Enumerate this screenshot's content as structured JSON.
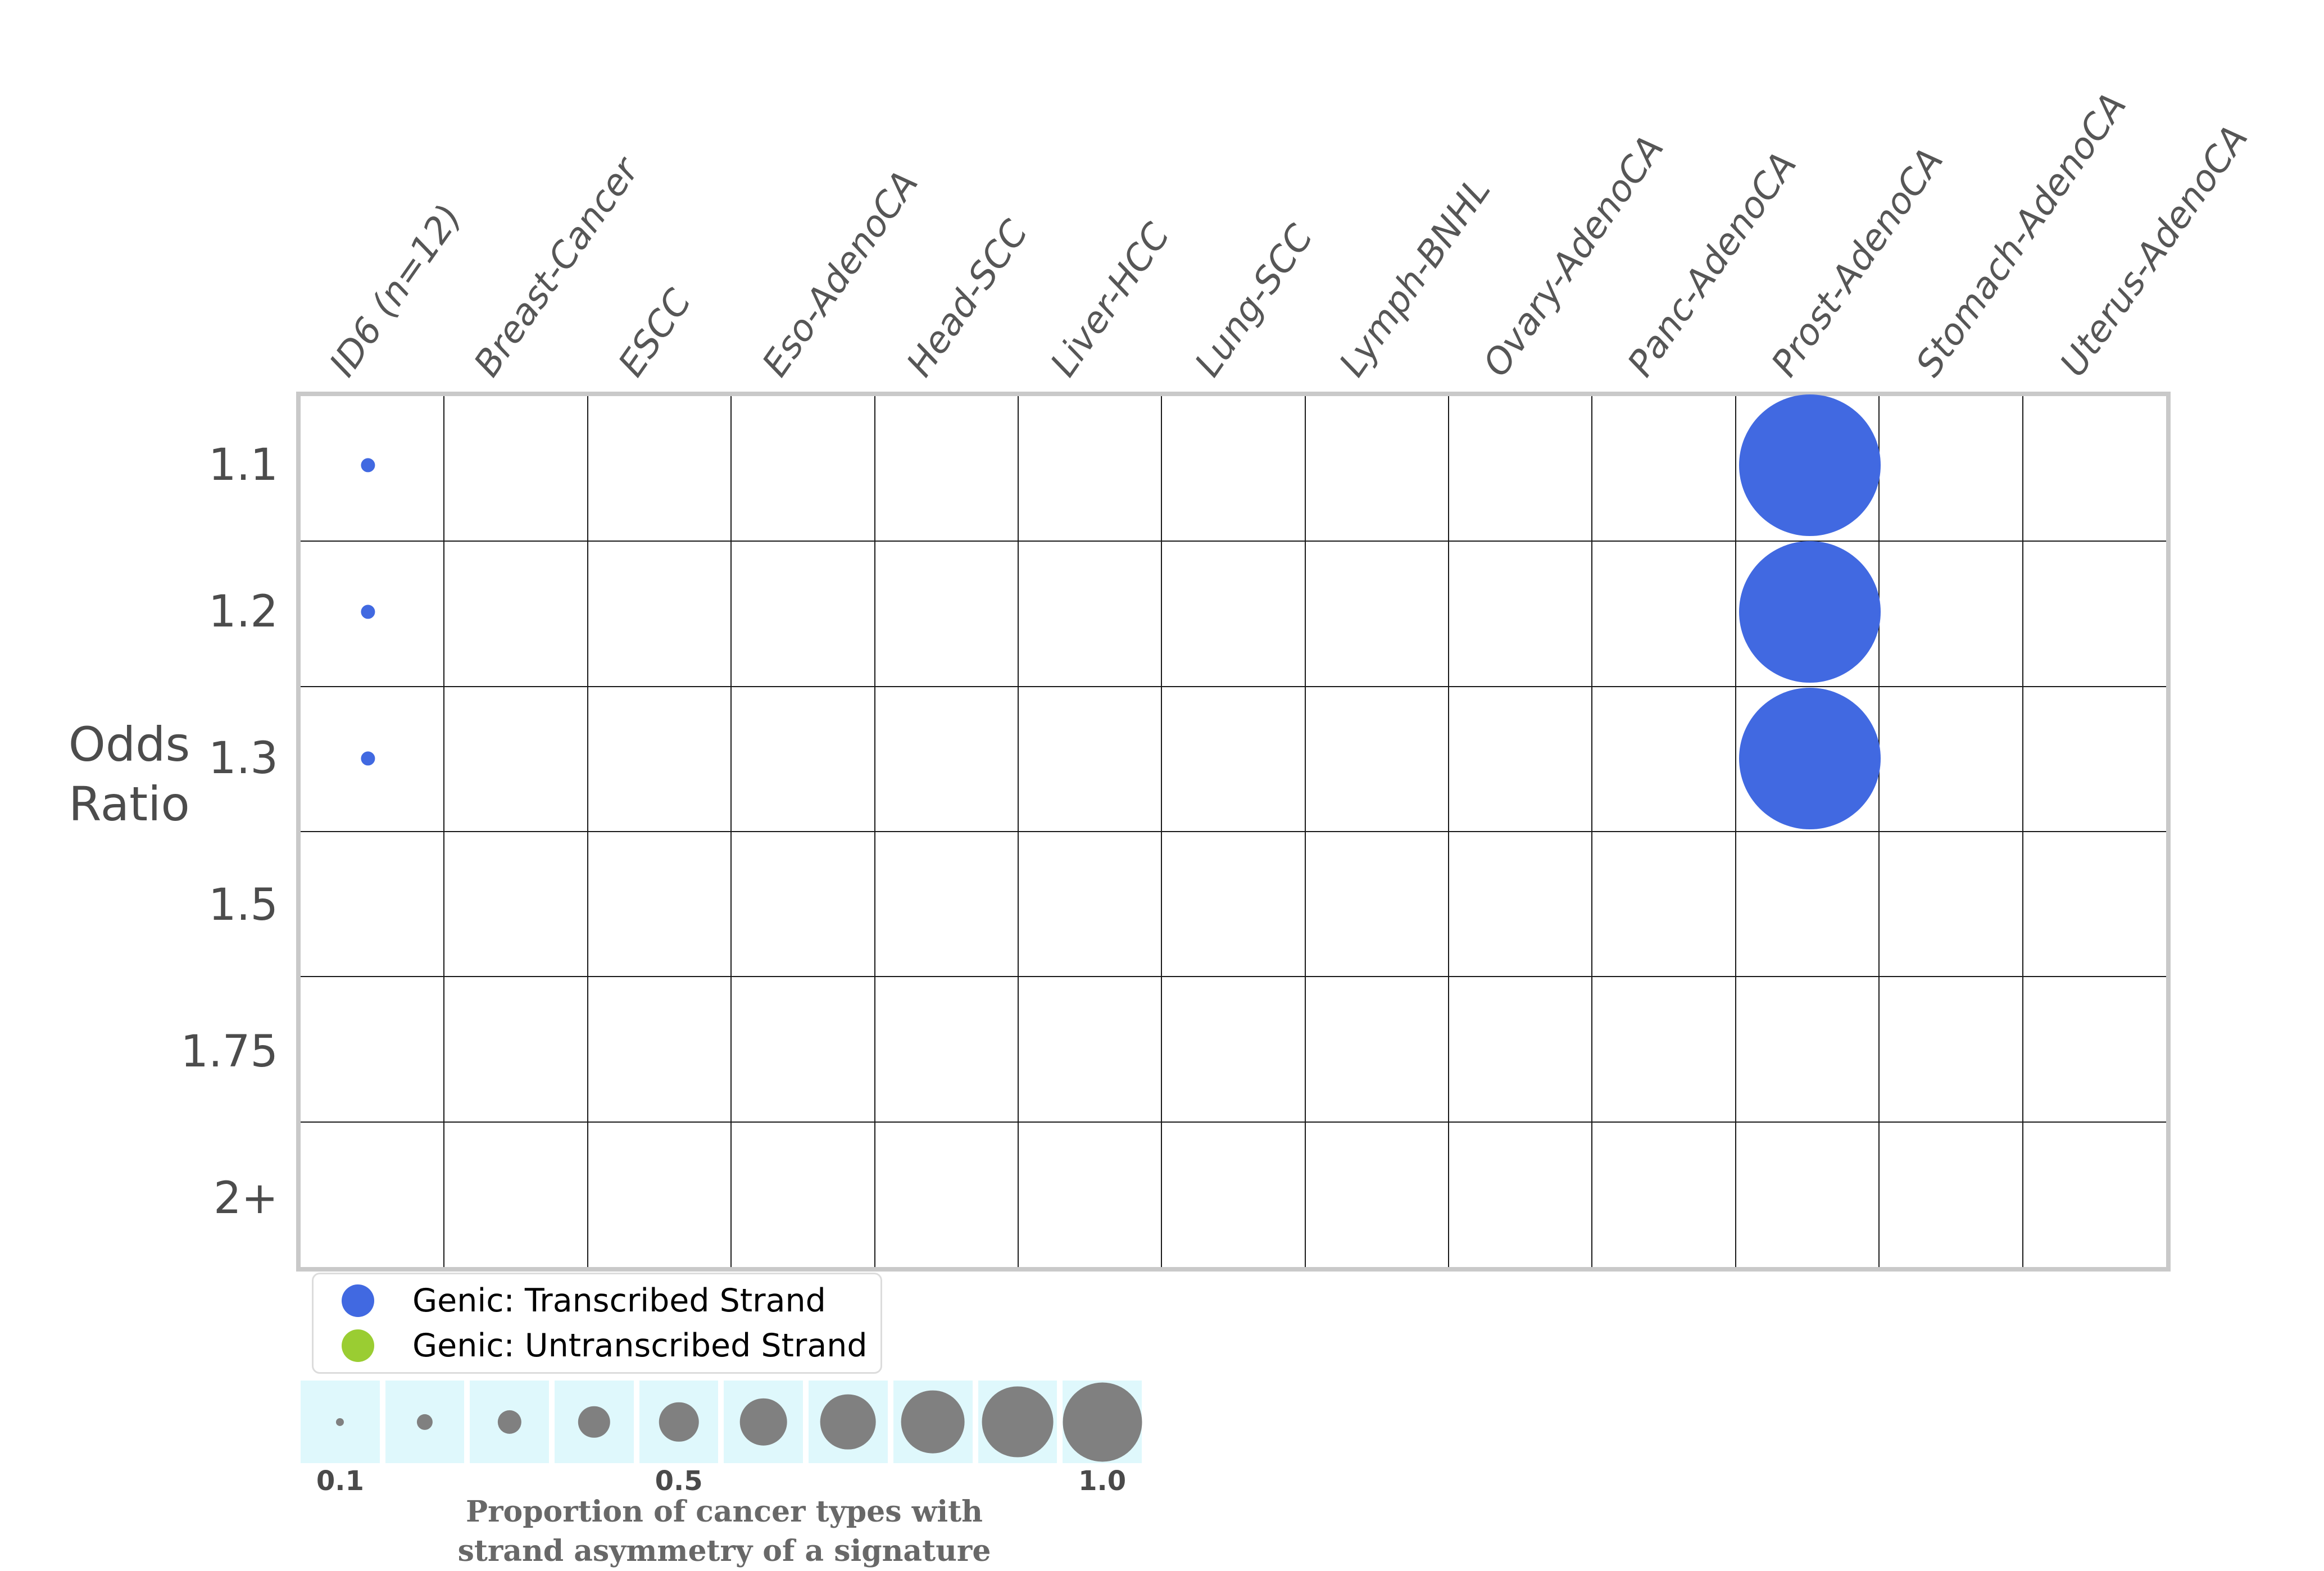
{
  "chart_data": {
    "type": "bubble",
    "x_categories": [
      "ID6 (n=12)",
      "Breast-Cancer",
      "ESCC",
      "Eso-AdenoCA",
      "Head-SCC",
      "Liver-HCC",
      "Lung-SCC",
      "Lymph-BNHL",
      "Ovary-AdenoCA",
      "Panc-AdenoCA",
      "Prost-AdenoCA",
      "Stomach-AdenoCA",
      "Uterus-AdenoCA"
    ],
    "y_categories": [
      "1.1",
      "1.2",
      "1.3",
      "1.5",
      "1.75",
      "2+"
    ],
    "y_axis_label_line1": "Odds",
    "y_axis_label_line2": "Ratio",
    "grid": "on",
    "series": [
      {
        "name": "Genic: Transcribed Strand",
        "color": "#4169e1",
        "points": [
          {
            "x": "ID6 (n=12)",
            "y": "1.1",
            "proportion": 0.1
          },
          {
            "x": "ID6 (n=12)",
            "y": "1.2",
            "proportion": 0.1
          },
          {
            "x": "ID6 (n=12)",
            "y": "1.3",
            "proportion": 0.1
          },
          {
            "x": "Prost-AdenoCA",
            "y": "1.1",
            "proportion": 1.0
          },
          {
            "x": "Prost-AdenoCA",
            "y": "1.2",
            "proportion": 1.0
          },
          {
            "x": "Prost-AdenoCA",
            "y": "1.3",
            "proportion": 1.0
          }
        ]
      },
      {
        "name": "Genic: Untranscribed Strand",
        "color": "#9acd32",
        "points": []
      }
    ],
    "size_legend": {
      "values": [
        0.1,
        0.2,
        0.3,
        0.4,
        0.5,
        0.6,
        0.7,
        0.8,
        0.9,
        1.0
      ],
      "tick_labels": [
        {
          "label": "0.1",
          "index": 0
        },
        {
          "label": "0.5",
          "index": 4
        },
        {
          "label": "1.0",
          "index": 9
        }
      ],
      "caption_line1": "Proportion of cancer types with",
      "caption_line2": "strand asymmetry of a signature",
      "circle_color": "#808080",
      "background_color": "#dff8fc"
    }
  }
}
